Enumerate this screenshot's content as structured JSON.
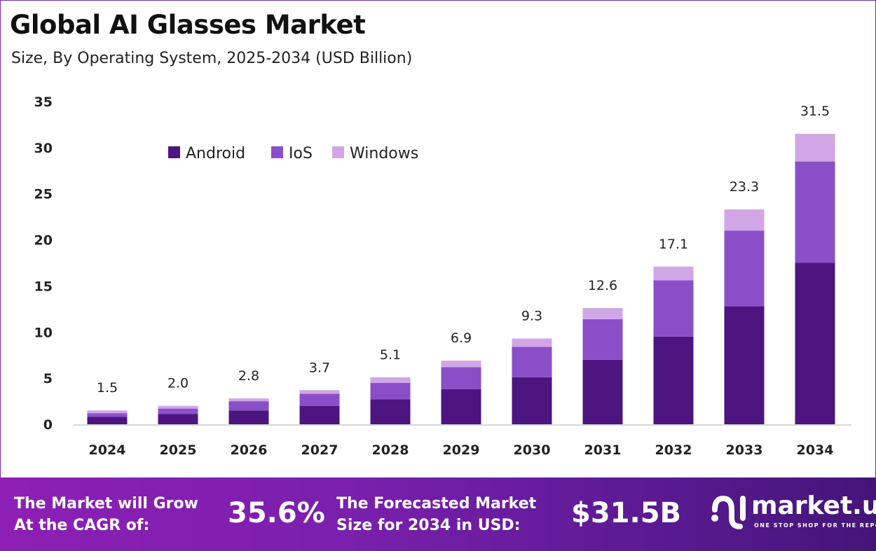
{
  "title": "Global AI Glasses Market",
  "subtitle": "Size, By Operating System, 2025-2034 (USD Billion)",
  "chart_data": {
    "type": "bar",
    "stacked": true,
    "categories": [
      "2024",
      "2025",
      "2026",
      "2027",
      "2028",
      "2029",
      "2030",
      "2031",
      "2032",
      "2033",
      "2034"
    ],
    "series": [
      {
        "name": "Android",
        "color": "#4c1580",
        "values": [
          0.8,
          1.1,
          1.5,
          2.0,
          2.7,
          3.8,
          5.1,
          7.0,
          9.5,
          12.8,
          17.5
        ]
      },
      {
        "name": "IoS",
        "color": "#8a4fc8",
        "values": [
          0.4,
          0.6,
          1.0,
          1.3,
          1.8,
          2.4,
          3.3,
          4.4,
          6.1,
          8.2,
          11.0
        ]
      },
      {
        "name": "Windows",
        "color": "#d1a6e6",
        "values": [
          0.3,
          0.3,
          0.3,
          0.4,
          0.6,
          0.7,
          0.9,
          1.2,
          1.5,
          2.3,
          3.0
        ]
      }
    ],
    "totals": [
      "1.5",
      "2.0",
      "2.8",
      "3.7",
      "5.1",
      "6.9",
      "9.3",
      "12.6",
      "17.1",
      "23.3",
      "31.5"
    ],
    "yticks": [
      "0",
      "5",
      "10",
      "15",
      "20",
      "25",
      "30",
      "35"
    ],
    "ylim": [
      0,
      35
    ],
    "grid": false,
    "legend": "top-left"
  },
  "banner": {
    "cagr_label": "The Market will Grow At the CAGR of:",
    "cagr_value": "35.6%",
    "forecast_label": "The Forecasted Market Size for 2034 in USD:",
    "forecast_value": "$31.5B",
    "logo_name": "market.us",
    "logo_tagline": "ONE STOP SHOP FOR THE REPORTS"
  }
}
